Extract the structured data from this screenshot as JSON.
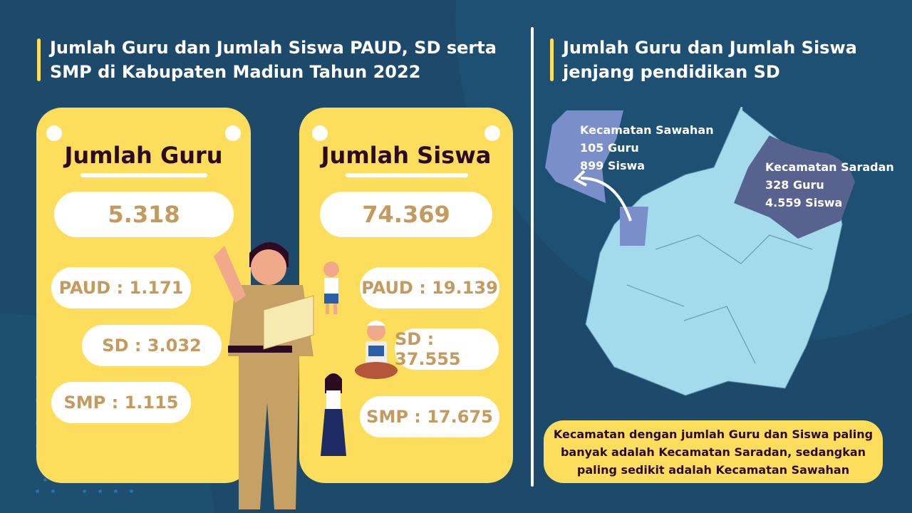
{
  "left_title": "Jumlah Guru dan Jumlah Siswa PAUD, SD serta SMP di Kabupaten Madiun Tahun 2022",
  "right_title": "Jumlah Guru dan Jumlah Siswa jenjang pendidikan SD",
  "guru": {
    "heading": "Jumlah Guru",
    "total": "5.318",
    "paud": "PAUD : 1.171",
    "sd": "SD : 3.032",
    "smp": "SMP : 1.115"
  },
  "siswa": {
    "heading": "Jumlah Siswa",
    "total": "74.369",
    "paud": "PAUD : 19.139",
    "sd": "SD : 37.555",
    "smp": "SMP : 17.675"
  },
  "map": {
    "sawahan": {
      "name": "Kecamatan Sawahan",
      "guru": "105 Guru",
      "siswa": "899 Siswa",
      "color": "#7a8fca"
    },
    "saradan": {
      "name": "Kecamatan Saradan",
      "guru": "328 Guru",
      "siswa": "4.559 Siswa",
      "color": "#58628f"
    },
    "base_color": "#a4dbec"
  },
  "note": "Kecamatan dengan jumlah Guru dan Siswa paling banyak adalah Kecamatan Saradan, sedangkan paling sedikit adalah Kecamatan Sawahan",
  "colors": {
    "background": "#1d4a6b",
    "card": "#fddd5c",
    "value_text": "#c49a5e",
    "heading_text": "#2b0a22"
  }
}
